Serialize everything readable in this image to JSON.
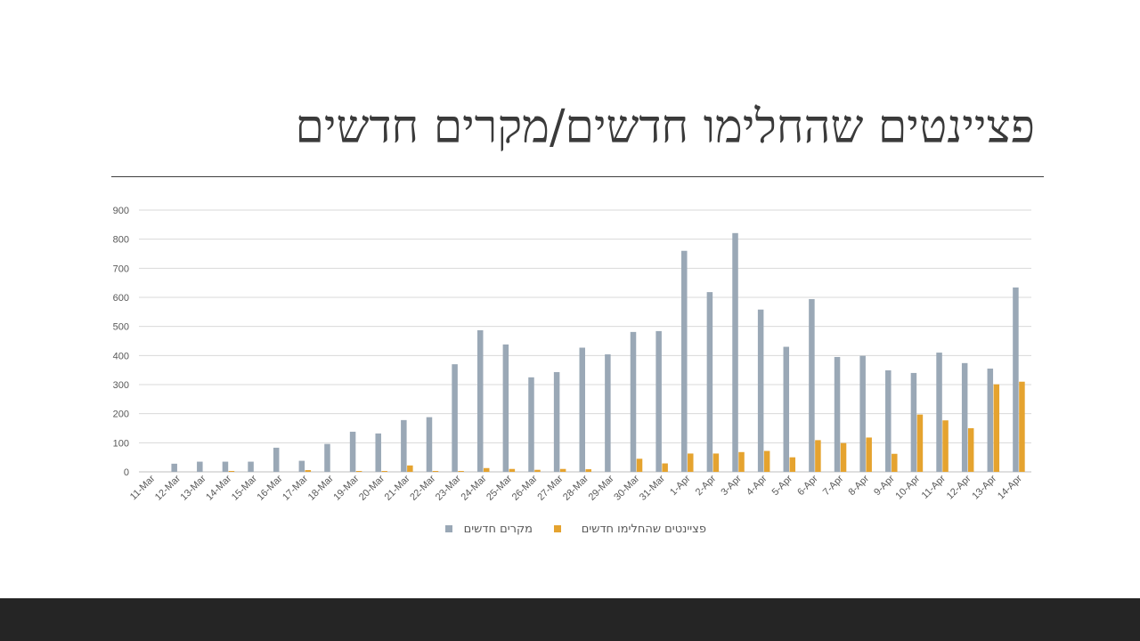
{
  "slide": {
    "title": "פציינטים שהחלימו חדשים/מקרים חדשים"
  },
  "colors": {
    "new_cases": "#9aa8b6",
    "recovered": "#e5a32f",
    "grid": "#d9d9d9",
    "axis_text": "#595959",
    "footer": "#252525"
  },
  "chart_data": {
    "type": "bar",
    "title": "",
    "xlabel": "",
    "ylabel": "",
    "ylim": [
      0,
      900
    ],
    "yticks": [
      0,
      100,
      200,
      300,
      400,
      500,
      600,
      700,
      800,
      900
    ],
    "grid": true,
    "legend_position": "bottom",
    "categories": [
      "11-Mar",
      "12-Mar",
      "13-Mar",
      "14-Mar",
      "15-Mar",
      "16-Mar",
      "17-Mar",
      "18-Mar",
      "19-Mar",
      "20-Mar",
      "21-Mar",
      "22-Mar",
      "23-Mar",
      "24-Mar",
      "25-Mar",
      "26-Mar",
      "27-Mar",
      "28-Mar",
      "29-Mar",
      "30-Mar",
      "31-Mar",
      "1-Apr",
      "2-Apr",
      "3-Apr",
      "4-Apr",
      "5-Apr",
      "6-Apr",
      "7-Apr",
      "8-Apr",
      "9-Apr",
      "10-Apr",
      "11-Apr",
      "12-Apr",
      "13-Apr",
      "14-Apr"
    ],
    "series": [
      {
        "name": "מקרים חדשים",
        "color": "#9aa8b6",
        "values": [
          0,
          28,
          35,
          35,
          35,
          83,
          38,
          96,
          138,
          132,
          178,
          188,
          370,
          487,
          438,
          325,
          343,
          427,
          404,
          481,
          484,
          760,
          618,
          821,
          558,
          430,
          594,
          395,
          399,
          349,
          340,
          410,
          374,
          355,
          634
        ]
      },
      {
        "name": "פציינטים שהחלימו חדשים",
        "color": "#e5a32f",
        "values": [
          0,
          0,
          0,
          3,
          0,
          0,
          6,
          0,
          3,
          3,
          22,
          3,
          3,
          13,
          10,
          7,
          10,
          9,
          0,
          45,
          29,
          63,
          63,
          68,
          72,
          50,
          109,
          99,
          118,
          62,
          197,
          177,
          150,
          301,
          310
        ]
      }
    ]
  }
}
